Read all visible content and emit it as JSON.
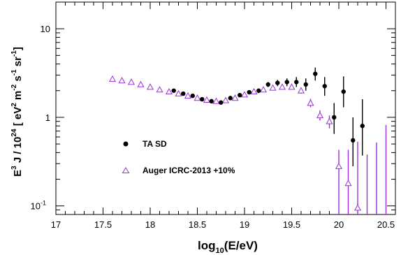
{
  "chart_data": {
    "type": "scatter",
    "title": "",
    "xlabel": "log10(E/eV)",
    "xlabel_parts": {
      "pre": "log",
      "sub": "10",
      "post": "(E/eV)"
    },
    "ylabel_parts": {
      "e": "E",
      "e_sup": "3",
      "mid": " J / 10",
      "exp": "24",
      "open": " [ eV",
      "sup2": "2",
      "m": " m",
      "supm2": "-2",
      "s": " s",
      "sups1": "-1",
      "sr": " sr",
      "supsr1": "-1",
      "close": "]"
    },
    "xlim": [
      17.0,
      20.6
    ],
    "ylim": [
      0.08,
      20
    ],
    "x_scale": "linear",
    "y_scale": "log",
    "grid": false,
    "legend_position": "center-left",
    "x_ticks": [
      "17",
      "17.5",
      "18",
      "18.5",
      "19",
      "19.5",
      "20",
      "20.5"
    ],
    "x_tick_values": [
      17,
      17.5,
      18,
      18.5,
      19,
      19.5,
      20,
      20.5
    ],
    "y_ticks": [
      "10",
      "1",
      "10"
    ],
    "y_tick_values": [
      10,
      1,
      0.1
    ],
    "y_tick_last_sup": "-1",
    "series": [
      {
        "name": "TA SD",
        "marker": "filled-circle",
        "color": "#000000",
        "points": [
          {
            "x": 18.25,
            "y": 2.0,
            "lo": 1.95,
            "hi": 2.05
          },
          {
            "x": 18.35,
            "y": 1.85,
            "lo": 1.8,
            "hi": 1.9
          },
          {
            "x": 18.45,
            "y": 1.75,
            "lo": 1.7,
            "hi": 1.8
          },
          {
            "x": 18.55,
            "y": 1.6,
            "lo": 1.56,
            "hi": 1.64
          },
          {
            "x": 18.65,
            "y": 1.52,
            "lo": 1.48,
            "hi": 1.56
          },
          {
            "x": 18.75,
            "y": 1.47,
            "lo": 1.42,
            "hi": 1.52
          },
          {
            "x": 18.85,
            "y": 1.65,
            "lo": 1.59,
            "hi": 1.71
          },
          {
            "x": 18.95,
            "y": 1.78,
            "lo": 1.71,
            "hi": 1.85
          },
          {
            "x": 19.05,
            "y": 1.92,
            "lo": 1.83,
            "hi": 2.01
          },
          {
            "x": 19.15,
            "y": 2.0,
            "lo": 1.88,
            "hi": 2.12
          },
          {
            "x": 19.25,
            "y": 2.35,
            "lo": 2.2,
            "hi": 2.5
          },
          {
            "x": 19.35,
            "y": 2.45,
            "lo": 2.25,
            "hi": 2.65
          },
          {
            "x": 19.45,
            "y": 2.5,
            "lo": 2.25,
            "hi": 2.75
          },
          {
            "x": 19.55,
            "y": 2.5,
            "lo": 2.2,
            "hi": 2.85
          },
          {
            "x": 19.65,
            "y": 2.35,
            "lo": 2.0,
            "hi": 2.75
          },
          {
            "x": 19.75,
            "y": 3.1,
            "lo": 2.6,
            "hi": 3.65
          },
          {
            "x": 19.85,
            "y": 2.25,
            "lo": 1.75,
            "hi": 2.85
          },
          {
            "x": 19.95,
            "y": 1.0,
            "lo": 0.65,
            "hi": 1.45
          },
          {
            "x": 20.05,
            "y": 1.95,
            "lo": 1.3,
            "hi": 2.9
          },
          {
            "x": 20.15,
            "y": 0.55,
            "lo": 0.28,
            "hi": 1.0
          },
          {
            "x": 20.25,
            "y": 0.8,
            "lo": 0.37,
            "hi": 1.6
          }
        ]
      },
      {
        "name": "Auger ICRC-2013 +10%",
        "marker": "open-triangle",
        "color": "#9b30d9",
        "points": [
          {
            "x": 17.6,
            "y": 2.7,
            "lo": 2.66,
            "hi": 2.74
          },
          {
            "x": 17.7,
            "y": 2.6,
            "lo": 2.56,
            "hi": 2.64
          },
          {
            "x": 17.8,
            "y": 2.5,
            "lo": 2.46,
            "hi": 2.54
          },
          {
            "x": 17.9,
            "y": 2.35,
            "lo": 2.31,
            "hi": 2.39
          },
          {
            "x": 18.0,
            "y": 2.2,
            "lo": 2.16,
            "hi": 2.24
          },
          {
            "x": 18.1,
            "y": 2.05,
            "lo": 2.01,
            "hi": 2.09
          },
          {
            "x": 18.2,
            "y": 1.95,
            "lo": 1.91,
            "hi": 1.99
          },
          {
            "x": 18.3,
            "y": 1.85,
            "lo": 1.81,
            "hi": 1.89
          },
          {
            "x": 18.4,
            "y": 1.75,
            "lo": 1.71,
            "hi": 1.79
          },
          {
            "x": 18.5,
            "y": 1.65,
            "lo": 1.61,
            "hi": 1.69
          },
          {
            "x": 18.6,
            "y": 1.57,
            "lo": 1.53,
            "hi": 1.61
          },
          {
            "x": 18.7,
            "y": 1.52,
            "lo": 1.48,
            "hi": 1.56
          },
          {
            "x": 18.8,
            "y": 1.55,
            "lo": 1.51,
            "hi": 1.59
          },
          {
            "x": 18.9,
            "y": 1.65,
            "lo": 1.61,
            "hi": 1.69
          },
          {
            "x": 19.0,
            "y": 1.8,
            "lo": 1.75,
            "hi": 1.85
          },
          {
            "x": 19.1,
            "y": 1.95,
            "lo": 1.89,
            "hi": 2.01
          },
          {
            "x": 19.2,
            "y": 2.05,
            "lo": 1.98,
            "hi": 2.12
          },
          {
            "x": 19.3,
            "y": 2.15,
            "lo": 2.06,
            "hi": 2.24
          },
          {
            "x": 19.4,
            "y": 2.2,
            "lo": 2.1,
            "hi": 2.3
          },
          {
            "x": 19.5,
            "y": 2.2,
            "lo": 2.08,
            "hi": 2.32
          },
          {
            "x": 19.6,
            "y": 2.0,
            "lo": 1.85,
            "hi": 2.15
          },
          {
            "x": 19.7,
            "y": 1.45,
            "lo": 1.3,
            "hi": 1.62
          },
          {
            "x": 19.8,
            "y": 1.05,
            "lo": 0.92,
            "hi": 1.2
          },
          {
            "x": 19.9,
            "y": 0.9,
            "lo": 0.75,
            "hi": 1.05
          },
          {
            "x": 20.0,
            "y": 0.28,
            "lo": 0.08,
            "hi": 0.43
          },
          {
            "x": 20.1,
            "y": 0.18,
            "lo": 0.08,
            "hi": 0.43
          },
          {
            "x": 20.2,
            "y": 0.095,
            "lo": 0.08,
            "hi": 0.53
          },
          {
            "x": 20.3,
            "y": null,
            "lo": 0.08,
            "hi": 0.38
          },
          {
            "x": 20.4,
            "y": null,
            "lo": 0.08,
            "hi": 0.52
          },
          {
            "x": 20.5,
            "y": null,
            "lo": 0.08,
            "hi": 0.82
          }
        ]
      }
    ]
  }
}
